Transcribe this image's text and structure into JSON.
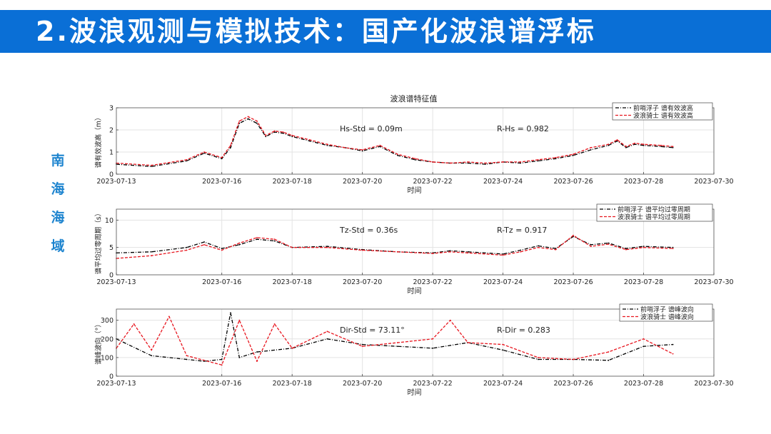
{
  "slide": {
    "title": "2.波浪观测与模拟技术：国产化波浪谱浮标",
    "region_label": [
      "南",
      "海",
      "海",
      "域"
    ]
  },
  "colors": {
    "title_bar": "#0a6fd6",
    "title_text": "#ffffff",
    "region": "#1d84cf",
    "series_a": "#000000",
    "series_b": "#e8161f"
  },
  "chart_data": [
    {
      "type": "line",
      "title": "波浪谱特征值",
      "xlabel": "时间",
      "ylabel": "谱有效波高（m）",
      "x_ticks": [
        "2023-07-13",
        "2023-07-16",
        "2023-07-18",
        "2023-07-20",
        "2023-07-22",
        "2023-07-24",
        "2023-07-26",
        "2023-07-28",
        "2023-07-30"
      ],
      "x_range": [
        "2023-07-13",
        "2023-07-30"
      ],
      "ylim": [
        0,
        3
      ],
      "y_ticks": [
        0,
        1,
        2,
        3
      ],
      "grid": true,
      "legend_position": "top-right",
      "annotations": [
        "Hs-Std = 0.09m",
        "R-Hs = 0.982"
      ],
      "series": [
        {
          "name": "前哨浮子  谱有效波高",
          "color": "#000000",
          "dash": "dashdot",
          "x": [
            "2023-07-13",
            "2023-07-14",
            "2023-07-15",
            "2023-07-15T12",
            "2023-07-16",
            "2023-07-16T06",
            "2023-07-16T12",
            "2023-07-16T18",
            "2023-07-17",
            "2023-07-17T06",
            "2023-07-17T12",
            "2023-07-17T18",
            "2023-07-18",
            "2023-07-18T12",
            "2023-07-19",
            "2023-07-19T12",
            "2023-07-20",
            "2023-07-20T12",
            "2023-07-21",
            "2023-07-21T12",
            "2023-07-22",
            "2023-07-22T12",
            "2023-07-23",
            "2023-07-23T12",
            "2023-07-24",
            "2023-07-24T12",
            "2023-07-25",
            "2023-07-25T12",
            "2023-07-26",
            "2023-07-26T12",
            "2023-07-27",
            "2023-07-27T06",
            "2023-07-27T12",
            "2023-07-27T18",
            "2023-07-28",
            "2023-07-28T12",
            "2023-07-28T20"
          ],
          "y": [
            0.45,
            0.35,
            0.6,
            0.95,
            0.7,
            1.2,
            2.3,
            2.5,
            2.3,
            1.7,
            1.9,
            1.85,
            1.7,
            1.5,
            1.3,
            1.2,
            1.05,
            1.25,
            0.85,
            0.65,
            0.55,
            0.5,
            0.5,
            0.45,
            0.55,
            0.5,
            0.6,
            0.7,
            0.85,
            1.1,
            1.3,
            1.5,
            1.2,
            1.35,
            1.3,
            1.25,
            1.2
          ]
        },
        {
          "name": "波浪骑士  谱有效波高",
          "color": "#e8161f",
          "dash": "dash",
          "x": [
            "2023-07-13",
            "2023-07-14",
            "2023-07-15",
            "2023-07-15T12",
            "2023-07-16",
            "2023-07-16T06",
            "2023-07-16T12",
            "2023-07-16T18",
            "2023-07-17",
            "2023-07-17T06",
            "2023-07-17T12",
            "2023-07-17T18",
            "2023-07-18",
            "2023-07-18T12",
            "2023-07-19",
            "2023-07-19T12",
            "2023-07-20",
            "2023-07-20T12",
            "2023-07-21",
            "2023-07-21T12",
            "2023-07-22",
            "2023-07-22T12",
            "2023-07-23",
            "2023-07-23T12",
            "2023-07-24",
            "2023-07-24T12",
            "2023-07-25",
            "2023-07-25T12",
            "2023-07-26",
            "2023-07-26T12",
            "2023-07-27",
            "2023-07-27T06",
            "2023-07-27T12",
            "2023-07-27T18",
            "2023-07-28",
            "2023-07-28T12",
            "2023-07-28T20"
          ],
          "y": [
            0.5,
            0.4,
            0.65,
            1.0,
            0.75,
            1.3,
            2.4,
            2.6,
            2.4,
            1.75,
            1.95,
            1.9,
            1.75,
            1.55,
            1.35,
            1.2,
            1.1,
            1.3,
            0.9,
            0.7,
            0.55,
            0.5,
            0.55,
            0.5,
            0.55,
            0.55,
            0.65,
            0.75,
            0.9,
            1.2,
            1.35,
            1.55,
            1.25,
            1.4,
            1.35,
            1.3,
            1.25
          ]
        }
      ]
    },
    {
      "type": "line",
      "title": "",
      "xlabel": "时间",
      "ylabel": "谱平均过零周期（s）",
      "x_ticks": [
        "2023-07-13",
        "2023-07-16",
        "2023-07-18",
        "2023-07-20",
        "2023-07-22",
        "2023-07-24",
        "2023-07-26",
        "2023-07-28",
        "2023-07-30"
      ],
      "x_range": [
        "2023-07-13",
        "2023-07-30"
      ],
      "ylim": [
        0,
        12
      ],
      "y_ticks": [
        0,
        5,
        10
      ],
      "grid": true,
      "legend_position": "top-right",
      "annotations": [
        "Tz-Std = 0.36s",
        "R-Tz = 0.917"
      ],
      "series": [
        {
          "name": "前哨浮子  谱平均过零周期",
          "color": "#000000",
          "dash": "dashdot",
          "x": [
            "2023-07-13",
            "2023-07-14",
            "2023-07-15",
            "2023-07-15T12",
            "2023-07-16",
            "2023-07-16T12",
            "2023-07-17",
            "2023-07-17T12",
            "2023-07-18",
            "2023-07-19",
            "2023-07-20",
            "2023-07-21",
            "2023-07-22",
            "2023-07-22T12",
            "2023-07-23",
            "2023-07-24",
            "2023-07-24T12",
            "2023-07-25",
            "2023-07-25T12",
            "2023-07-26",
            "2023-07-26T12",
            "2023-07-27",
            "2023-07-27T12",
            "2023-07-28",
            "2023-07-28T20"
          ],
          "y": [
            4.0,
            4.2,
            5.0,
            6.0,
            4.8,
            5.5,
            6.5,
            6.2,
            5.0,
            5.2,
            4.6,
            4.2,
            4.0,
            4.4,
            4.2,
            3.8,
            4.5,
            5.3,
            4.8,
            7.0,
            5.5,
            5.8,
            4.8,
            5.2,
            5.0
          ]
        },
        {
          "name": "波浪骑士  谱平均过零周期",
          "color": "#e8161f",
          "dash": "dash",
          "x": [
            "2023-07-13",
            "2023-07-14",
            "2023-07-15",
            "2023-07-15T12",
            "2023-07-16",
            "2023-07-16T12",
            "2023-07-17",
            "2023-07-17T12",
            "2023-07-18",
            "2023-07-19",
            "2023-07-20",
            "2023-07-21",
            "2023-07-22",
            "2023-07-22T12",
            "2023-07-23",
            "2023-07-24",
            "2023-07-24T12",
            "2023-07-25",
            "2023-07-25T12",
            "2023-07-26",
            "2023-07-26T12",
            "2023-07-27",
            "2023-07-27T12",
            "2023-07-28",
            "2023-07-28T20"
          ],
          "y": [
            3.0,
            3.5,
            4.5,
            5.5,
            4.5,
            5.8,
            6.8,
            6.5,
            5.0,
            5.0,
            4.5,
            4.2,
            3.9,
            4.2,
            4.0,
            3.6,
            4.2,
            5.0,
            4.6,
            7.2,
            5.2,
            5.6,
            4.6,
            5.0,
            4.8
          ]
        }
      ]
    },
    {
      "type": "line",
      "title": "",
      "xlabel": "时间",
      "ylabel": "谱峰波向（°）",
      "x_ticks": [
        "2023-07-13",
        "2023-07-16",
        "2023-07-18",
        "2023-07-20",
        "2023-07-22",
        "2023-07-24",
        "2023-07-26",
        "2023-07-28",
        "2023-07-30"
      ],
      "x_range": [
        "2023-07-13",
        "2023-07-30"
      ],
      "ylim": [
        0,
        360
      ],
      "y_ticks": [
        0,
        100,
        200,
        300
      ],
      "grid": true,
      "legend_position": "top-right",
      "annotations": [
        "Dir-Std = 73.11°",
        "R-Dir = 0.283"
      ],
      "series": [
        {
          "name": "前哨浮子  谱峰波向",
          "color": "#000000",
          "dash": "dashdot",
          "x": [
            "2023-07-13",
            "2023-07-14",
            "2023-07-15",
            "2023-07-15T12",
            "2023-07-16",
            "2023-07-16T06",
            "2023-07-16T12",
            "2023-07-17",
            "2023-07-18",
            "2023-07-19",
            "2023-07-20",
            "2023-07-21",
            "2023-07-22",
            "2023-07-23",
            "2023-07-24",
            "2023-07-25",
            "2023-07-26",
            "2023-07-27",
            "2023-07-28",
            "2023-07-28T20"
          ],
          "y": [
            200,
            110,
            90,
            80,
            90,
            340,
            100,
            130,
            150,
            200,
            170,
            160,
            150,
            180,
            140,
            90,
            90,
            85,
            160,
            170
          ]
        },
        {
          "name": "波浪骑士  谱峰波向",
          "color": "#e8161f",
          "dash": "dash",
          "x": [
            "2023-07-13",
            "2023-07-13T12",
            "2023-07-14",
            "2023-07-14T12",
            "2023-07-15",
            "2023-07-16",
            "2023-07-16T12",
            "2023-07-17",
            "2023-07-17T12",
            "2023-07-18",
            "2023-07-19",
            "2023-07-20",
            "2023-07-21",
            "2023-07-22",
            "2023-07-22T12",
            "2023-07-23",
            "2023-07-24",
            "2023-07-25",
            "2023-07-26",
            "2023-07-27",
            "2023-07-28",
            "2023-07-28T20"
          ],
          "y": [
            150,
            280,
            140,
            320,
            110,
            60,
            300,
            80,
            280,
            150,
            240,
            160,
            180,
            200,
            300,
            180,
            170,
            100,
            90,
            130,
            200,
            120
          ]
        }
      ]
    }
  ]
}
